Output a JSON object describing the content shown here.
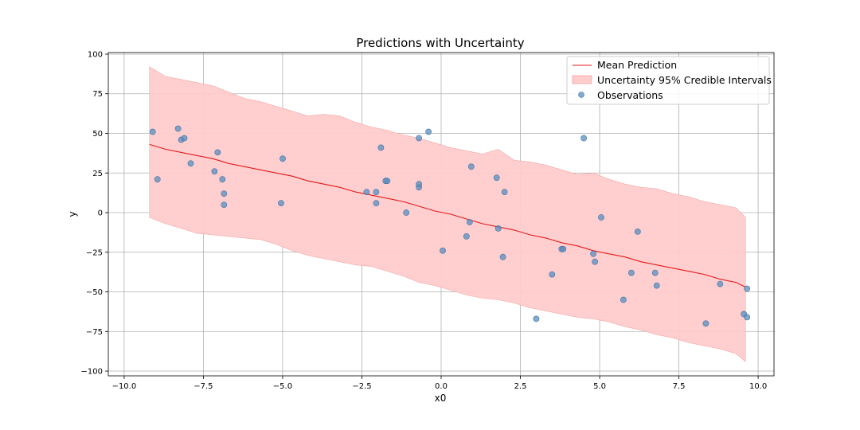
{
  "chart_data": {
    "type": "line",
    "title": "Predictions with Uncertainty",
    "xlabel": "x0",
    "ylabel": "y",
    "xlim": [
      -10.5,
      10.5
    ],
    "ylim": [
      -103,
      101
    ],
    "xticks": [
      -10,
      -7.5,
      -5,
      -2.5,
      0,
      2.5,
      5,
      7.5,
      10
    ],
    "xtick_labels": [
      "−10.0",
      "−7.5",
      "−5.0",
      "−2.5",
      "0.0",
      "2.5",
      "5.0",
      "7.5",
      "10.0"
    ],
    "yticks": [
      -100,
      -75,
      -50,
      -25,
      0,
      25,
      50,
      75,
      100
    ],
    "ytick_labels": [
      "−100",
      "−75",
      "−50",
      "−25",
      "0",
      "25",
      "50",
      "75",
      "100"
    ],
    "grid": true,
    "legend_position": "top-right",
    "legend": {
      "mean": "Mean Prediction",
      "band": "Uncertainty 95% Credible Intervals",
      "points": "Observations"
    },
    "colors": {
      "mean": "#e31a1c",
      "band": "#ffcccc",
      "band_edge": "#f4a6a6",
      "points": "#5a8dbf",
      "points_edge": "#3f73a6",
      "grid": "#b0b0b0"
    },
    "mean_prediction": {
      "x": [
        -9.2,
        -8.7,
        -8.2,
        -7.7,
        -7.2,
        -6.7,
        -6.2,
        -5.7,
        -5.2,
        -4.7,
        -4.2,
        -3.7,
        -3.2,
        -2.7,
        -2.2,
        -1.7,
        -1.2,
        -0.7,
        -0.2,
        0.3,
        0.8,
        1.3,
        1.8,
        2.3,
        2.8,
        3.3,
        3.8,
        4.3,
        4.8,
        5.3,
        5.8,
        6.3,
        6.8,
        7.3,
        7.8,
        8.3,
        8.8,
        9.3,
        9.6
      ],
      "y": [
        43,
        40,
        38,
        36,
        34,
        31,
        29,
        27,
        25,
        23,
        20,
        18,
        16,
        13,
        11,
        9,
        7,
        4,
        1,
        -1,
        -4,
        -7,
        -9,
        -11,
        -14,
        -16,
        -19,
        -21,
        -24,
        -26,
        -28,
        -31,
        -33,
        -35,
        -37,
        -39,
        -42,
        -44,
        -47
      ]
    },
    "credible_interval": {
      "x": [
        -9.2,
        -8.7,
        -8.2,
        -7.7,
        -7.2,
        -6.7,
        -6.2,
        -5.7,
        -5.2,
        -4.7,
        -4.2,
        -3.7,
        -3.2,
        -2.7,
        -2.2,
        -1.7,
        -1.2,
        -0.7,
        -0.2,
        0.3,
        0.8,
        1.3,
        1.8,
        2.3,
        2.8,
        3.3,
        3.8,
        4.3,
        4.8,
        5.3,
        5.8,
        6.3,
        6.8,
        7.3,
        7.8,
        8.3,
        8.8,
        9.3,
        9.6
      ],
      "upper": [
        92,
        86,
        84,
        82,
        80,
        76,
        72,
        70,
        67,
        64,
        61,
        62,
        61,
        57,
        54,
        52,
        49,
        47,
        44,
        41,
        39,
        37,
        40,
        33,
        32,
        30,
        27,
        24,
        25,
        21,
        18,
        16,
        15,
        12,
        10,
        7,
        5,
        3,
        -3
      ],
      "lower": [
        -3,
        -7,
        -10,
        -13,
        -14,
        -15,
        -16,
        -17,
        -20,
        -24,
        -27,
        -29,
        -31,
        -33,
        -34,
        -37,
        -40,
        -44,
        -46,
        -49,
        -52,
        -54,
        -55,
        -57,
        -60,
        -62,
        -64,
        -66,
        -67,
        -69,
        -72,
        -74,
        -77,
        -79,
        -82,
        -84,
        -86,
        -89,
        -94
      ]
    },
    "observations": {
      "x": [
        -9.1,
        -8.95,
        -8.3,
        -8.2,
        -8.1,
        -7.9,
        -7.15,
        -7.05,
        -6.9,
        -6.85,
        -6.85,
        -5.05,
        -5.0,
        -2.35,
        -2.05,
        -2.05,
        -1.9,
        -1.75,
        -1.7,
        -1.1,
        -0.7,
        -0.7,
        -0.7,
        -0.4,
        0.05,
        0.8,
        0.9,
        0.95,
        1.75,
        1.8,
        1.95,
        2.0,
        3.0,
        3.5,
        3.8,
        3.85,
        4.5,
        4.8,
        4.85,
        5.05,
        5.75,
        6.0,
        6.2,
        6.75,
        6.8,
        8.35,
        8.8,
        9.55,
        9.65,
        9.65
      ],
      "y": [
        51,
        21,
        53,
        46,
        47,
        31,
        26,
        38,
        21,
        5,
        12,
        6,
        34,
        13,
        6,
        13,
        41,
        20,
        20,
        0,
        16,
        18,
        47,
        51,
        -24,
        -15,
        -6,
        29,
        22,
        -10,
        -28,
        13,
        -67,
        -39,
        -23,
        -23,
        47,
        -26,
        -31,
        -3,
        -55,
        -38,
        -12,
        -38,
        -46,
        -70,
        -45,
        -64,
        -48,
        -66
      ]
    }
  }
}
